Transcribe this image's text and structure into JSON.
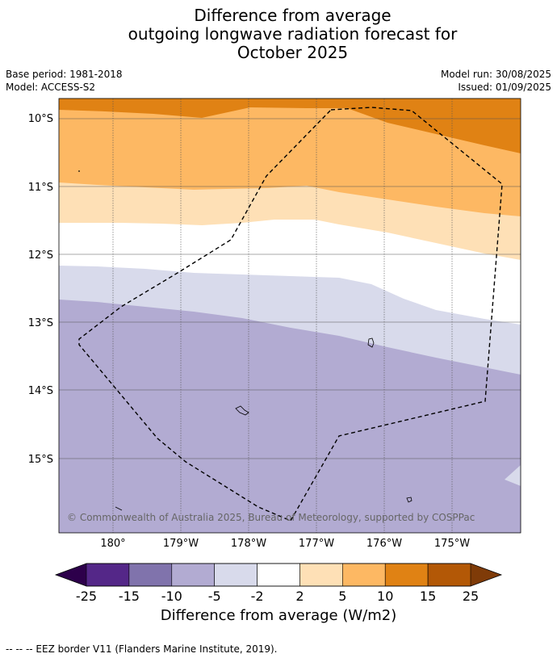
{
  "title": {
    "line1": "Difference from average",
    "line2": "outgoing longwave radiation forecast for",
    "line3": "October 2025"
  },
  "meta_left": {
    "base_period": "Base period: 1981-2018",
    "model": "Model: ACCESS-S2"
  },
  "meta_right": {
    "model_run": "Model run: 30/08/2025",
    "issued": "Issued: 01/09/2025"
  },
  "map": {
    "lat_labels": [
      "10°S",
      "11°S",
      "12°S",
      "13°S",
      "14°S",
      "15°S"
    ],
    "lon_labels": [
      "180°",
      "179°W",
      "178°W",
      "177°W",
      "176°W",
      "175°W"
    ],
    "copyright": "© Commonwealth of Australia 2025, Bureau of Meteorology, supported by COSPPac",
    "band_colors": {
      "c10_15": "#e08214",
      "c5_10": "#fdb863",
      "c2_5": "#fee0b6",
      "cneutral": "#ffffff",
      "cm2_m5": "#d8daeb",
      "cm5_m10": "#b2abd2"
    }
  },
  "colorbar": {
    "tick_labels": [
      "-25",
      "-15",
      "-10",
      "-5",
      "-2",
      "2",
      "5",
      "10",
      "15",
      "25"
    ],
    "colors": [
      "#542788",
      "#8073ac",
      "#b2abd2",
      "#d8daeb",
      "#ffffff",
      "#fee0b6",
      "#fdb863",
      "#e08214",
      "#b35806"
    ],
    "under_color": "#2d004b",
    "over_color": "#7f3b08",
    "label": "Difference from average (W/m2)"
  },
  "footer": "--  --  -- EEZ border V11 (Flanders Marine Institute, 2019)."
}
